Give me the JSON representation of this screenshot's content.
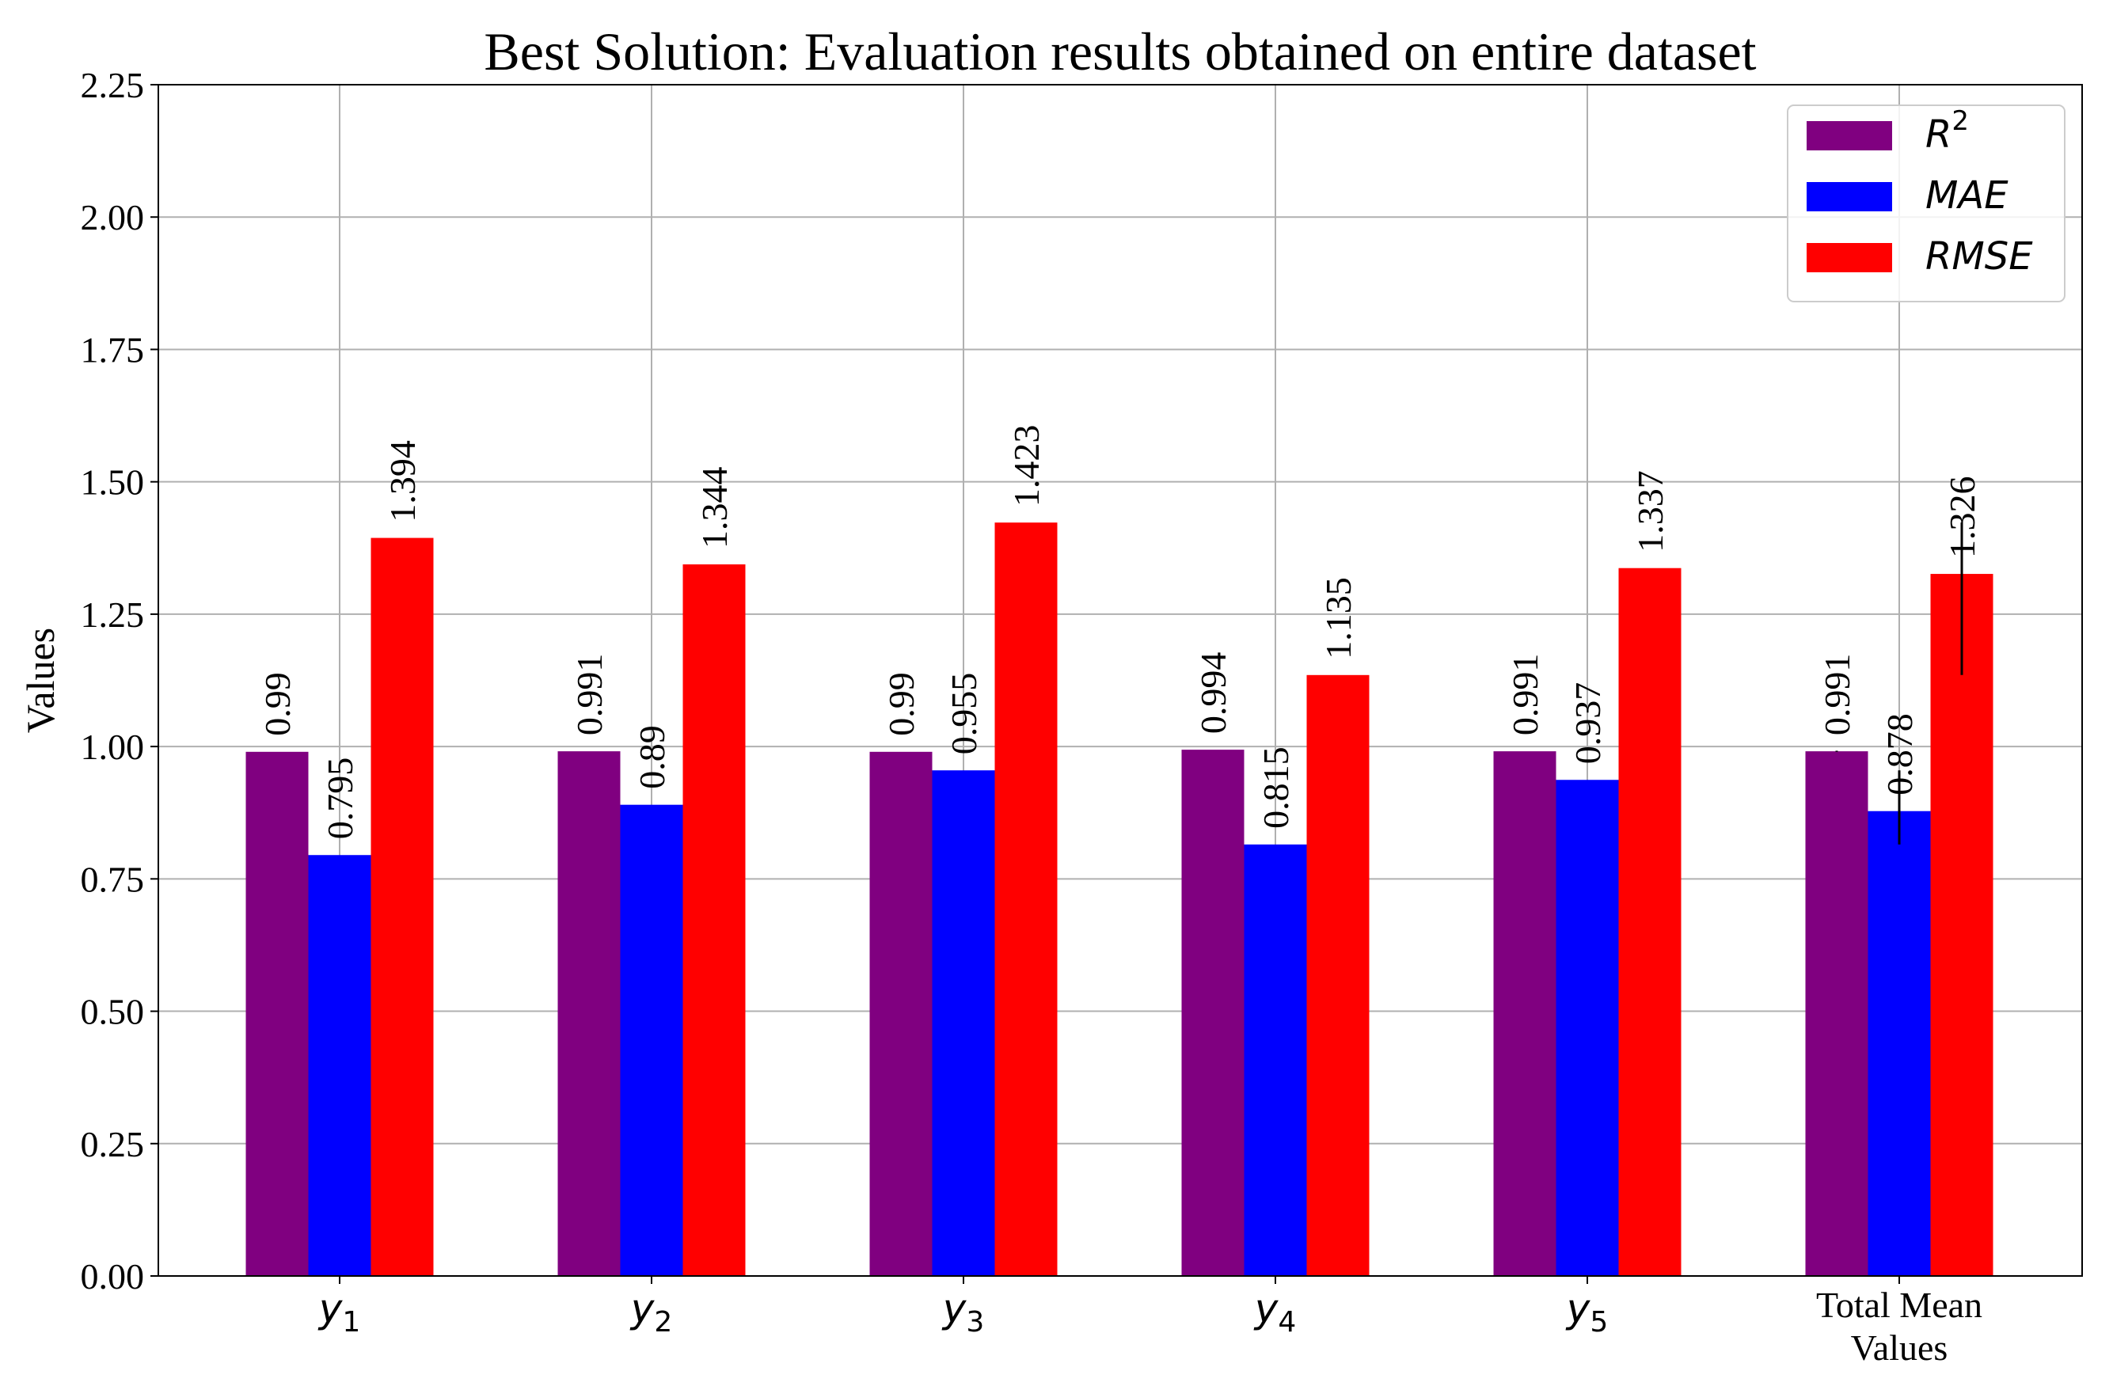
{
  "chart_data": {
    "type": "bar",
    "title": "Best Solution: Evaluation results obtained on entire dataset",
    "xlabel": "",
    "ylabel": "Values",
    "ylim": [
      0,
      2.25
    ],
    "yticks": [
      "0.00",
      "0.25",
      "0.50",
      "0.75",
      "1.00",
      "1.25",
      "1.50",
      "1.75",
      "2.00",
      "2.25"
    ],
    "grid": true,
    "legend_position": "top-right",
    "categories": [
      {
        "base": "y",
        "sub": "1"
      },
      {
        "base": "y",
        "sub": "2"
      },
      {
        "base": "y",
        "sub": "3"
      },
      {
        "base": "y",
        "sub": "4"
      },
      {
        "base": "y",
        "sub": "5"
      },
      {
        "lines": [
          "Total Mean",
          "Values"
        ]
      }
    ],
    "series": [
      {
        "name": "R",
        "name_sup": "2",
        "color": "#800080",
        "values": [
          0.99,
          0.991,
          0.99,
          0.994,
          0.991,
          0.991
        ],
        "labels": [
          "0.99",
          "0.991",
          "0.99",
          "0.994",
          "0.991",
          "0.991"
        ]
      },
      {
        "name": "MAE",
        "color": "#0000ff",
        "values": [
          0.795,
          0.89,
          0.955,
          0.815,
          0.937,
          0.878
        ],
        "labels": [
          "0.795",
          "0.89",
          "0.955",
          "0.815",
          "0.937",
          "0.878"
        ]
      },
      {
        "name": "RMSE",
        "color": "#ff0000",
        "values": [
          1.394,
          1.344,
          1.423,
          1.135,
          1.337,
          1.326
        ],
        "labels": [
          "1.394",
          "1.344",
          "1.423",
          "1.135",
          "1.337",
          "1.326"
        ]
      }
    ],
    "error_bars": [
      {
        "category_index": 5,
        "series_index": 0,
        "low": 0.99,
        "high": 0.992
      },
      {
        "category_index": 5,
        "series_index": 1,
        "low": 0.815,
        "high": 0.955
      },
      {
        "category_index": 5,
        "series_index": 2,
        "low": 1.135,
        "high": 1.423
      }
    ]
  }
}
